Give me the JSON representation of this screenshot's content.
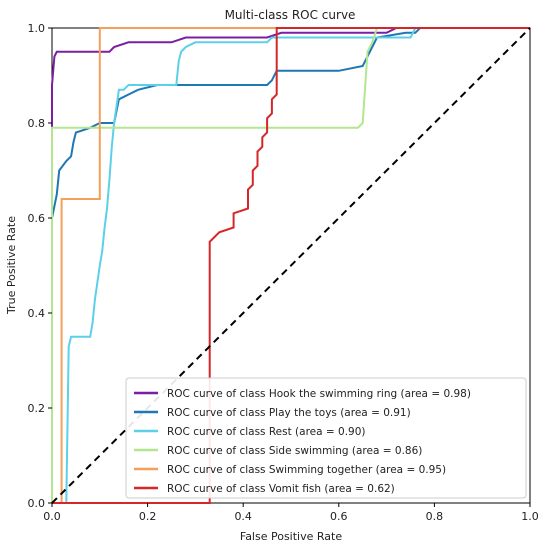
{
  "chart_data": {
    "type": "line",
    "title": "Multi-class ROC curve",
    "xlabel": "False Positive Rate",
    "ylabel": "True Positive Rate",
    "xlim": [
      0.0,
      1.0
    ],
    "ylim": [
      0.0,
      1.0
    ],
    "xticks": [
      "0.0",
      "0.2",
      "0.4",
      "0.6",
      "0.8",
      "1.0"
    ],
    "yticks": [
      "0.0",
      "0.2",
      "0.4",
      "0.6",
      "0.8",
      "1.0"
    ],
    "grid": false,
    "legend_position": "lower-right",
    "diagonal": {
      "style": "dashed",
      "color": "#000000",
      "points": [
        [
          0,
          0
        ],
        [
          1,
          1
        ]
      ]
    },
    "series": [
      {
        "name": "ROC curve of class Hook the swimming ring (area = 0.98)",
        "color": "#7b1fa2",
        "points": [
          [
            0,
            0
          ],
          [
            0,
            0.88
          ],
          [
            0.005,
            0.94
          ],
          [
            0.01,
            0.95
          ],
          [
            0.12,
            0.95
          ],
          [
            0.13,
            0.96
          ],
          [
            0.16,
            0.97
          ],
          [
            0.25,
            0.97
          ],
          [
            0.28,
            0.98
          ],
          [
            0.45,
            0.98
          ],
          [
            0.48,
            0.99
          ],
          [
            0.6,
            0.99
          ],
          [
            0.7,
            0.99
          ],
          [
            0.72,
            1.0
          ],
          [
            1.0,
            1.0
          ]
        ]
      },
      {
        "name": "ROC curve of class Play the toys (area = 0.91)",
        "color": "#1f77b4",
        "points": [
          [
            0,
            0
          ],
          [
            0,
            0.6
          ],
          [
            0.01,
            0.65
          ],
          [
            0.015,
            0.7
          ],
          [
            0.03,
            0.72
          ],
          [
            0.04,
            0.73
          ],
          [
            0.045,
            0.76
          ],
          [
            0.05,
            0.78
          ],
          [
            0.08,
            0.79
          ],
          [
            0.1,
            0.8
          ],
          [
            0.13,
            0.8
          ],
          [
            0.14,
            0.85
          ],
          [
            0.16,
            0.86
          ],
          [
            0.18,
            0.87
          ],
          [
            0.22,
            0.88
          ],
          [
            0.45,
            0.88
          ],
          [
            0.46,
            0.89
          ],
          [
            0.47,
            0.91
          ],
          [
            0.6,
            0.91
          ],
          [
            0.65,
            0.92
          ],
          [
            0.68,
            0.98
          ],
          [
            0.74,
            0.99
          ],
          [
            0.76,
            0.99
          ],
          [
            0.77,
            1.0
          ],
          [
            1.0,
            1.0
          ]
        ]
      },
      {
        "name": "ROC curve of class Rest (area = 0.90)",
        "color": "#5bd0e8",
        "points": [
          [
            0,
            0
          ],
          [
            0.03,
            0
          ],
          [
            0.035,
            0.33
          ],
          [
            0.04,
            0.35
          ],
          [
            0.08,
            0.35
          ],
          [
            0.085,
            0.38
          ],
          [
            0.09,
            0.43
          ],
          [
            0.1,
            0.5
          ],
          [
            0.105,
            0.53
          ],
          [
            0.11,
            0.58
          ],
          [
            0.115,
            0.62
          ],
          [
            0.12,
            0.68
          ],
          [
            0.125,
            0.75
          ],
          [
            0.13,
            0.8
          ],
          [
            0.14,
            0.87
          ],
          [
            0.15,
            0.87
          ],
          [
            0.16,
            0.88
          ],
          [
            0.26,
            0.88
          ],
          [
            0.265,
            0.93
          ],
          [
            0.27,
            0.95
          ],
          [
            0.28,
            0.96
          ],
          [
            0.3,
            0.97
          ],
          [
            0.45,
            0.97
          ],
          [
            0.46,
            0.98
          ],
          [
            0.75,
            0.98
          ],
          [
            0.76,
            1.0
          ],
          [
            1.0,
            1.0
          ]
        ]
      },
      {
        "name": "ROC curve of class Side swimming (area = 0.86)",
        "color": "#b2e68f",
        "points": [
          [
            0,
            0
          ],
          [
            0,
            0.79
          ],
          [
            0.64,
            0.79
          ],
          [
            0.65,
            0.8
          ],
          [
            0.66,
            0.95
          ],
          [
            0.67,
            0.97
          ],
          [
            0.68,
            1.0
          ],
          [
            1.0,
            1.0
          ]
        ]
      },
      {
        "name": "ROC curve of class Swimming together (area = 0.95)",
        "color": "#f5a05a",
        "points": [
          [
            0,
            0
          ],
          [
            0.02,
            0
          ],
          [
            0.02,
            0.64
          ],
          [
            0.1,
            0.64
          ],
          [
            0.1,
            1.0
          ],
          [
            1.0,
            1.0
          ]
        ]
      },
      {
        "name": "ROC curve of class Vomit fish (area = 0.62)",
        "color": "#d62728",
        "points": [
          [
            0,
            0
          ],
          [
            0.33,
            0
          ],
          [
            0.33,
            0.33
          ],
          [
            0.33,
            0.55
          ],
          [
            0.34,
            0.56
          ],
          [
            0.35,
            0.57
          ],
          [
            0.38,
            0.58
          ],
          [
            0.38,
            0.61
          ],
          [
            0.41,
            0.62
          ],
          [
            0.41,
            0.66
          ],
          [
            0.42,
            0.67
          ],
          [
            0.42,
            0.7
          ],
          [
            0.43,
            0.71
          ],
          [
            0.43,
            0.74
          ],
          [
            0.44,
            0.75
          ],
          [
            0.44,
            0.77
          ],
          [
            0.45,
            0.78
          ],
          [
            0.45,
            0.81
          ],
          [
            0.46,
            0.82
          ],
          [
            0.46,
            0.85
          ],
          [
            0.47,
            0.86
          ],
          [
            0.47,
            1.0
          ],
          [
            1.0,
            1.0
          ]
        ]
      }
    ]
  }
}
